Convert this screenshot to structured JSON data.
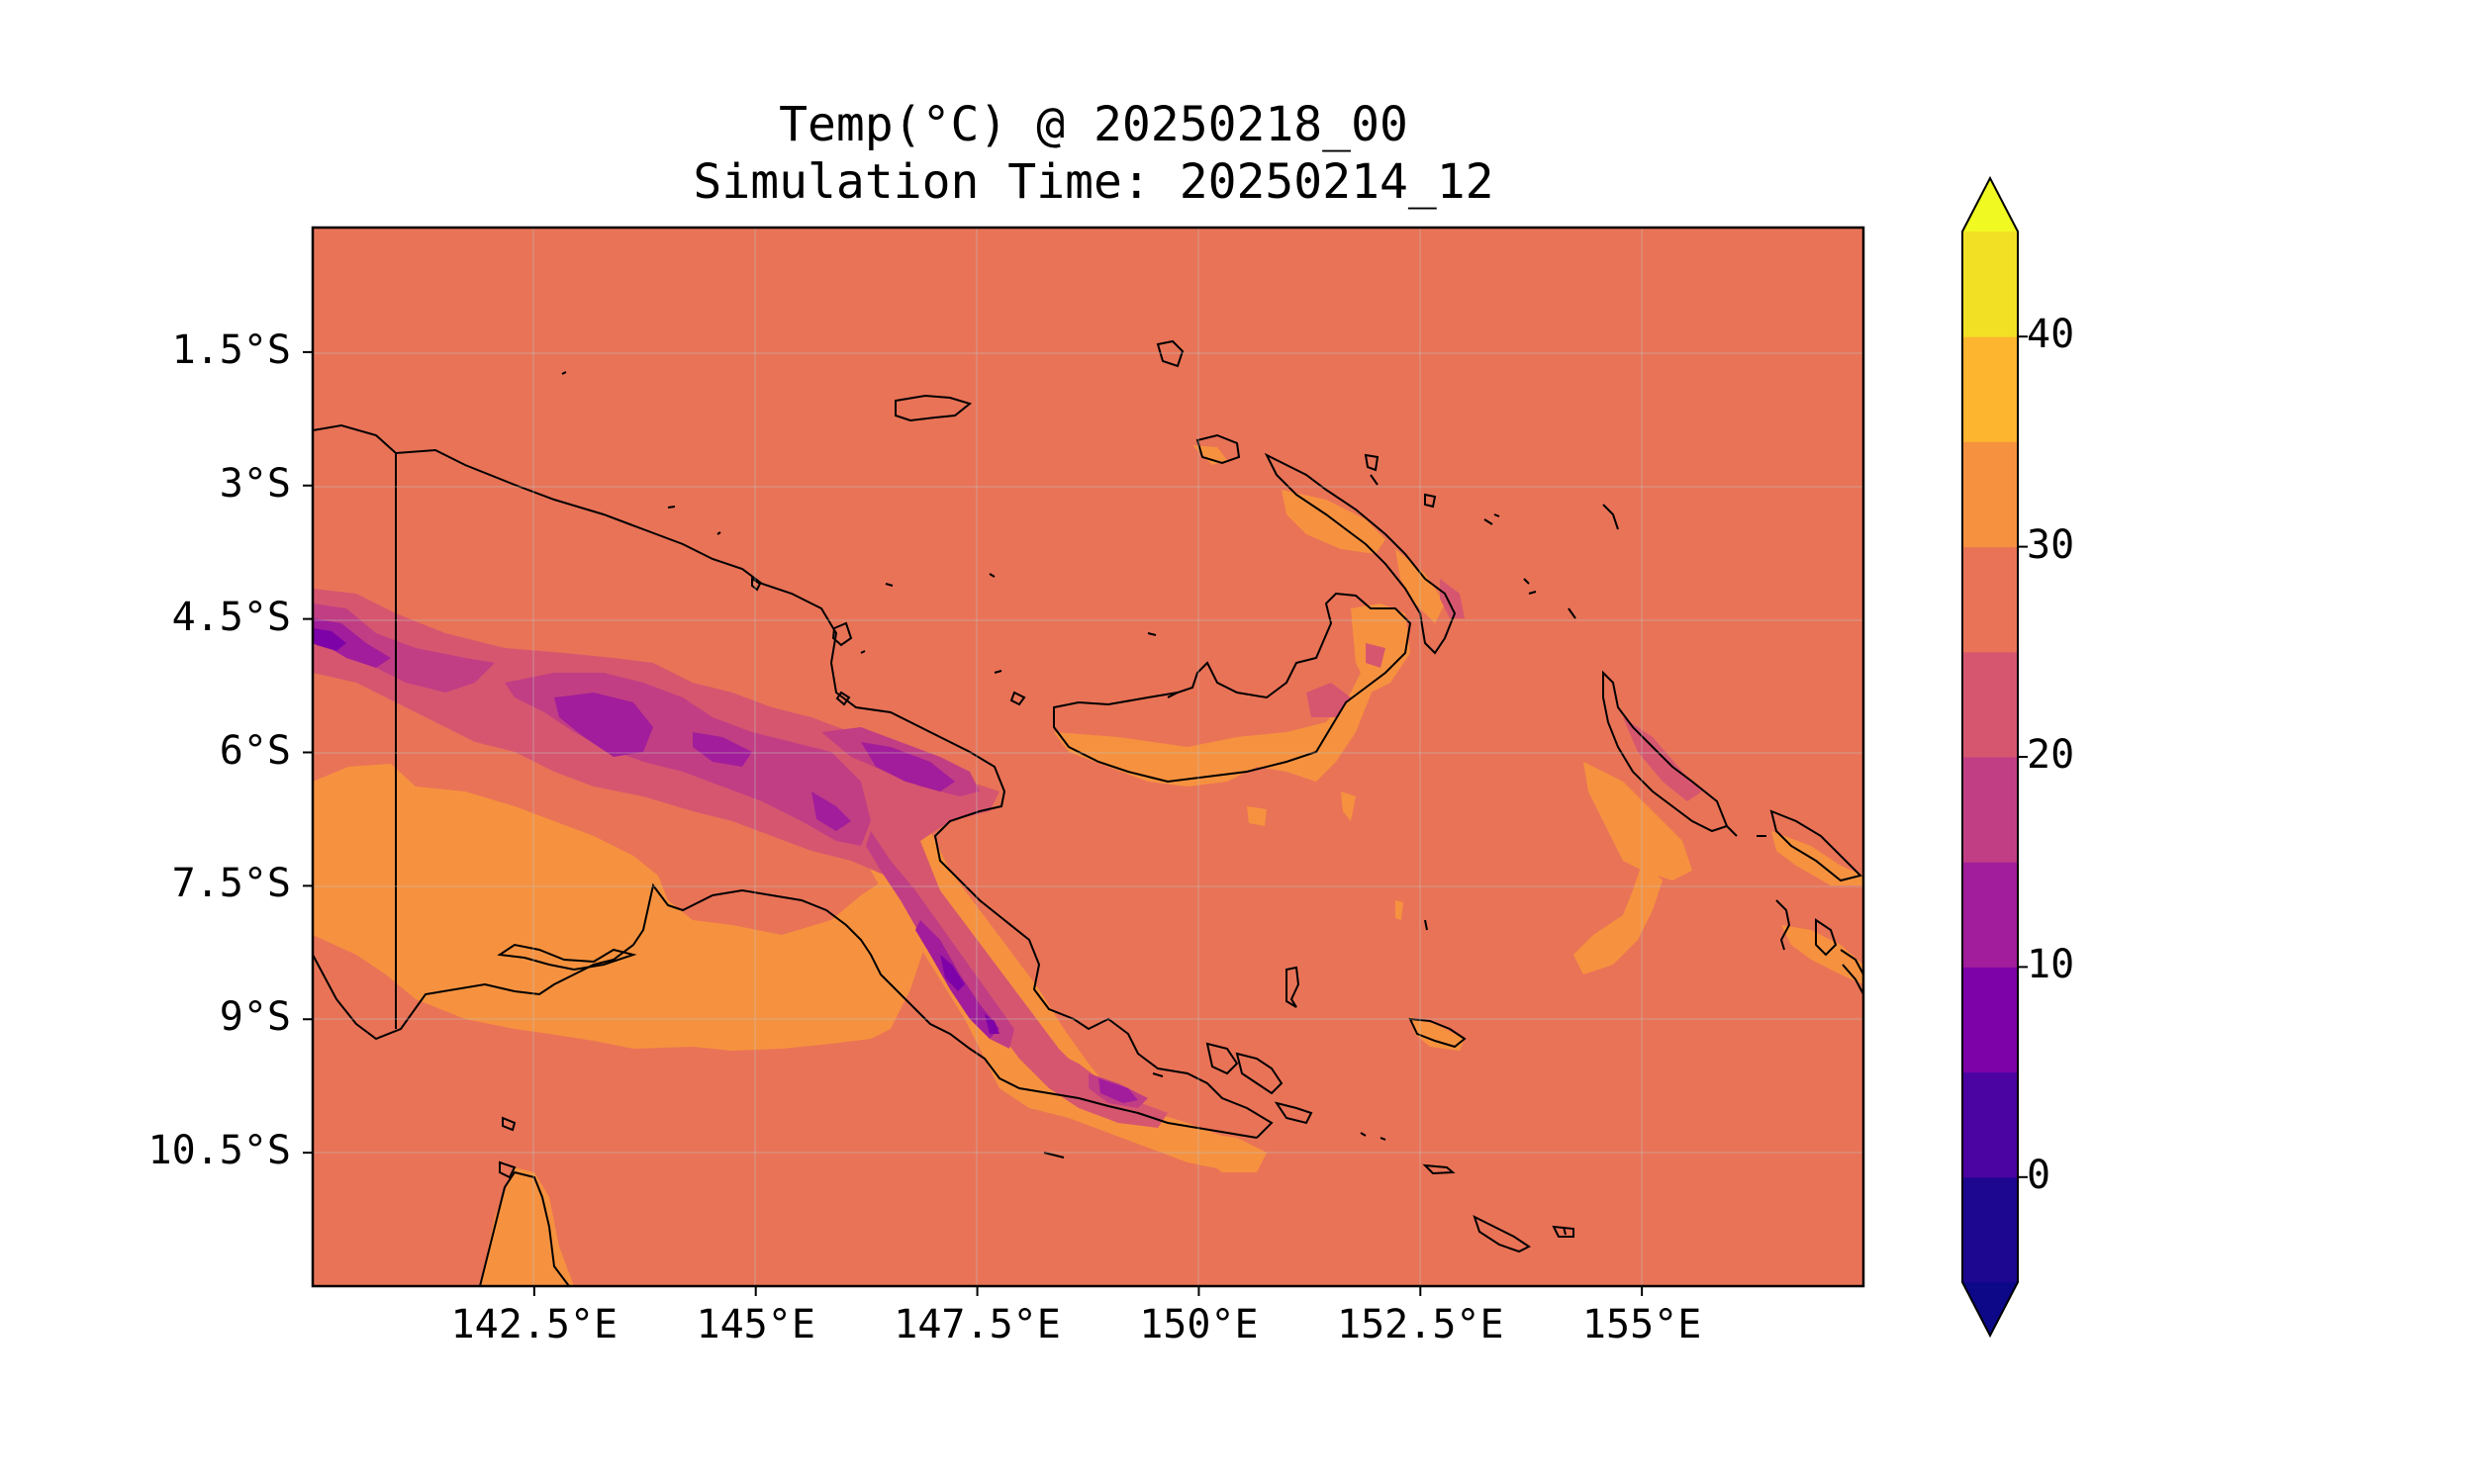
{
  "title": {
    "line1": "Temp(°C) @ 20250218_00",
    "line2": "Simulation Time: 20250214_12"
  },
  "map": {
    "variable": "Temp(°C)",
    "valid_time": "20250218_00",
    "simulation_time": "20250214_12",
    "extent": {
      "lon": [
        140.0,
        157.5
      ],
      "lat": [
        -12.0,
        -0.1
      ]
    },
    "lat_ticks": [
      {
        "value": -1.5,
        "label": "1.5°S"
      },
      {
        "value": -3.0,
        "label": "3°S"
      },
      {
        "value": -4.5,
        "label": "4.5°S"
      },
      {
        "value": -6.0,
        "label": "6°S"
      },
      {
        "value": -7.5,
        "label": "7.5°S"
      },
      {
        "value": -9.0,
        "label": "9°S"
      },
      {
        "value": -10.5,
        "label": "10.5°S"
      }
    ],
    "lon_ticks": [
      {
        "value": 142.5,
        "label": "142.5°E"
      },
      {
        "value": 145.0,
        "label": "145°E"
      },
      {
        "value": 147.5,
        "label": "147.5°E"
      },
      {
        "value": 150.0,
        "label": "150°E"
      },
      {
        "value": 152.5,
        "label": "152.5°E"
      },
      {
        "value": 155.0,
        "label": "155°E"
      }
    ],
    "background_color": "#e97357",
    "coastline_color": "#000000"
  },
  "colorbar": {
    "min": -5,
    "max": 45,
    "extend": "both",
    "levels": [
      {
        "from": -5,
        "to": 0,
        "color": "#1e0790"
      },
      {
        "from": 0,
        "to": 5,
        "color": "#4b03a1"
      },
      {
        "from": 5,
        "to": 10,
        "color": "#7d03a8"
      },
      {
        "from": 10,
        "to": 15,
        "color": "#a11d9b"
      },
      {
        "from": 15,
        "to": 20,
        "color": "#c13e84"
      },
      {
        "from": 20,
        "to": 25,
        "color": "#d6566f"
      },
      {
        "from": 25,
        "to": 30,
        "color": "#e97357"
      },
      {
        "from": 30,
        "to": 35,
        "color": "#f6923f"
      },
      {
        "from": 35,
        "to": 40,
        "color": "#fdb42f"
      },
      {
        "from": 40,
        "to": 45,
        "color": "#f2e024"
      }
    ],
    "under_color": "#0d0887",
    "over_color": "#f0f921",
    "ticks": [
      {
        "value": 0,
        "label": "0"
      },
      {
        "value": 10,
        "label": "10"
      },
      {
        "value": 20,
        "label": "20"
      },
      {
        "value": 30,
        "label": "30"
      },
      {
        "value": 40,
        "label": "40"
      }
    ]
  }
}
